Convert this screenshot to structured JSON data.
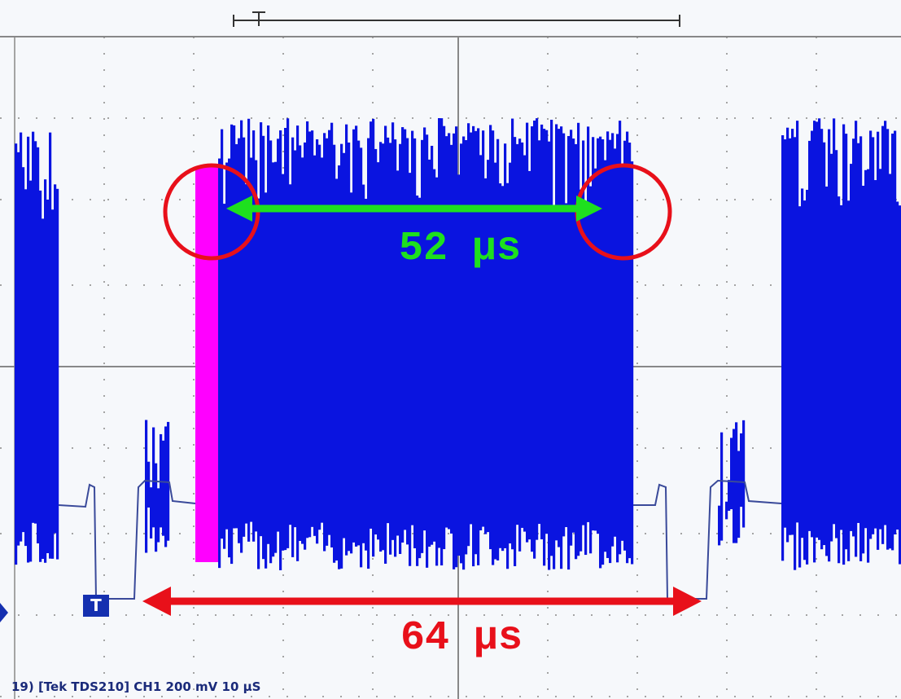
{
  "annotations": {
    "inner_width": "52 µs",
    "line_period": "64 µs"
  },
  "status_bar": "19) [Tek TDS210] CH1 200 mV   10 µS",
  "trigger_marker": "T"
}
